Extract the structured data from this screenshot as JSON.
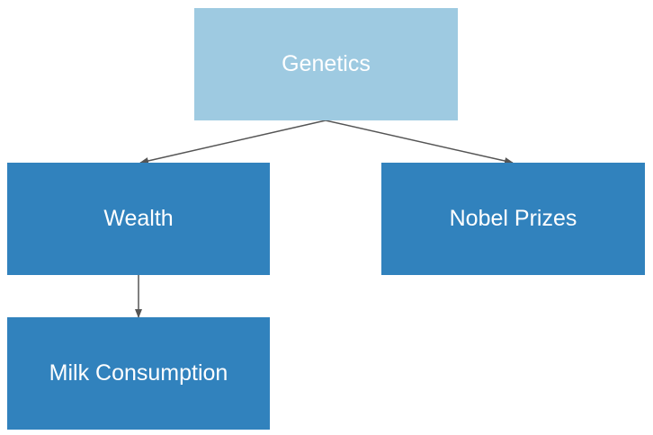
{
  "diagram": {
    "type": "directed-graph",
    "colors": {
      "root_node": "#9ecae1",
      "child_node": "#3182bd",
      "edge": "#555555",
      "text": "#ffffff",
      "background": "#ffffff"
    },
    "nodes": {
      "genetics": "Genetics",
      "wealth": "Wealth",
      "nobel_prizes": "Nobel Prizes",
      "milk_consumption": "Milk Consumption"
    },
    "edges": [
      {
        "from": "Genetics",
        "to": "Wealth"
      },
      {
        "from": "Genetics",
        "to": "Nobel Prizes"
      },
      {
        "from": "Wealth",
        "to": "Milk Consumption"
      }
    ]
  }
}
